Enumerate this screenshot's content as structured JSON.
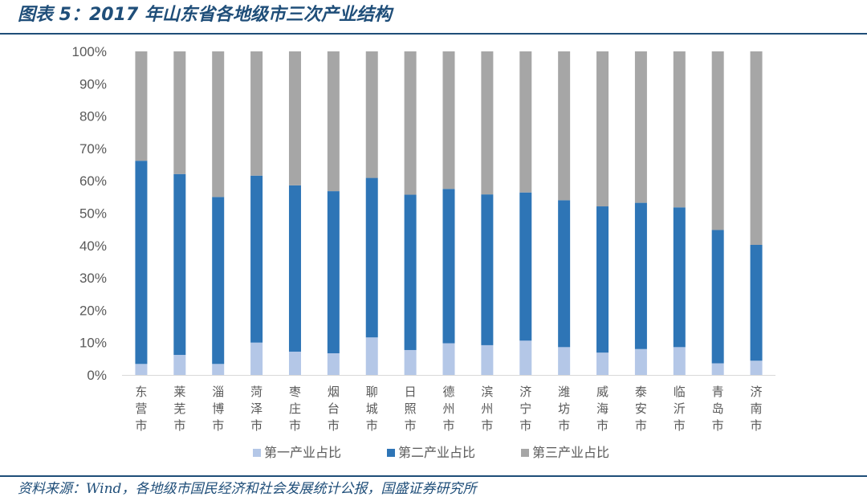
{
  "title": "图表 5：2017 年山东省各地级市三次产业结构",
  "source": "资料来源：Wind，各地级市国民经济和社会发展统计公报，国盛证券研究所",
  "colors": {
    "primary": "#b4c7e7",
    "secondary": "#2e75b6",
    "tertiary": "#a6a6a6",
    "brand": "#1f4e79"
  },
  "chart_data": {
    "type": "bar",
    "stacked": true,
    "categories": [
      "东营市",
      "莱芜市",
      "淄博市",
      "菏泽市",
      "枣庄市",
      "烟台市",
      "聊城市",
      "日照市",
      "德州市",
      "滨州市",
      "济宁市",
      "潍坊市",
      "威海市",
      "泰安市",
      "临沂市",
      "青岛市",
      "济南市"
    ],
    "series": [
      {
        "name": "第一产业占比",
        "values": [
          3.4,
          6.2,
          3.4,
          10.0,
          7.2,
          6.7,
          11.6,
          7.7,
          9.8,
          9.2,
          10.6,
          8.6,
          6.9,
          8.0,
          8.6,
          3.6,
          4.4
        ]
      },
      {
        "name": "第二产业占比",
        "values": [
          62.8,
          55.9,
          51.6,
          51.6,
          51.4,
          50.1,
          49.3,
          48.0,
          47.7,
          46.6,
          45.8,
          45.4,
          45.2,
          45.2,
          43.2,
          41.2,
          35.8
        ]
      },
      {
        "name": "第三产业占比",
        "values": [
          33.8,
          37.9,
          45.0,
          38.4,
          41.4,
          43.2,
          39.1,
          44.3,
          42.5,
          44.2,
          43.6,
          46.0,
          47.9,
          46.8,
          48.2,
          55.2,
          59.8
        ]
      }
    ],
    "y_ticks": [
      "0%",
      "10%",
      "20%",
      "30%",
      "40%",
      "50%",
      "60%",
      "70%",
      "80%",
      "90%",
      "100%"
    ],
    "ylim": [
      0,
      100
    ],
    "grid": false,
    "legend_position": "bottom"
  }
}
